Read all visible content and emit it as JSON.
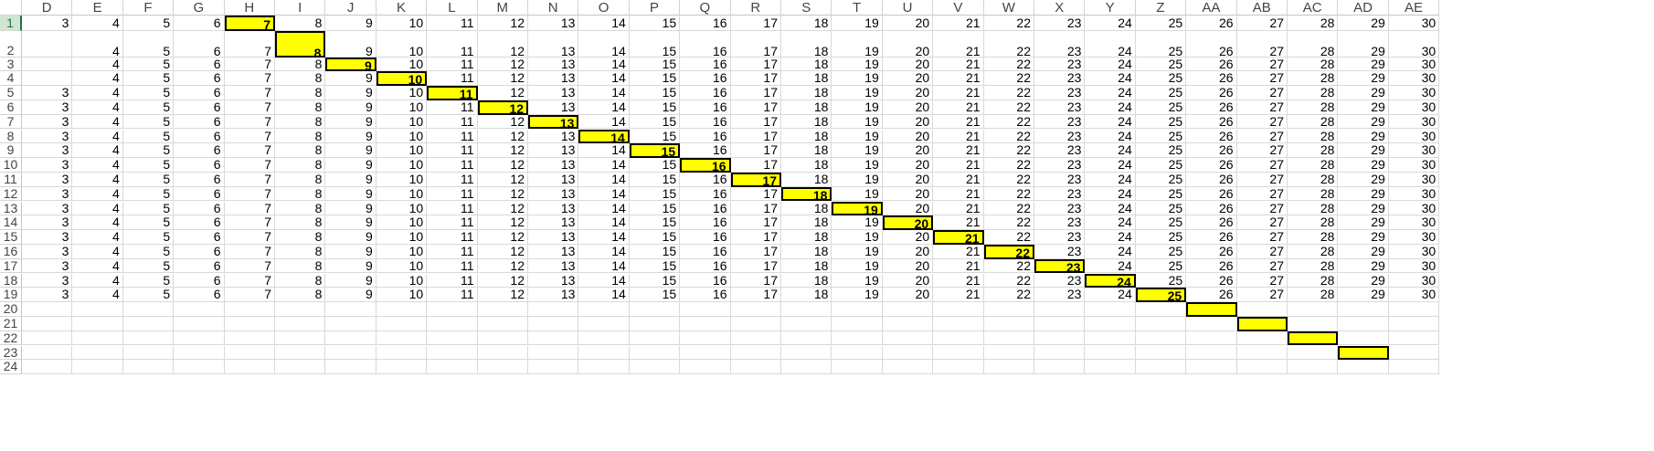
{
  "sheet": {
    "active_row": 1,
    "columns": [
      "D",
      "E",
      "F",
      "G",
      "H",
      "I",
      "J",
      "K",
      "L",
      "M",
      "N",
      "O",
      "P",
      "Q",
      "R",
      "S",
      "T",
      "U",
      "V",
      "W",
      "X",
      "Y",
      "Z",
      "AA",
      "AB",
      "AC",
      "AD",
      "AE"
    ],
    "row_numbers": [
      1,
      2,
      3,
      4,
      5,
      6,
      7,
      8,
      9,
      10,
      11,
      12,
      13,
      14,
      15,
      16,
      17,
      18,
      19,
      20,
      21,
      22,
      23,
      24
    ],
    "highlight_fill": "#ffff00",
    "highlight_border": "#000000",
    "rows": [
      {
        "cells": [
          "3",
          "4",
          "5",
          "6",
          "7",
          "8",
          "9",
          "10",
          "11",
          "12",
          "13",
          "14",
          "15",
          "16",
          "17",
          "18",
          "19",
          "20",
          "21",
          "22",
          "23",
          "24",
          "25",
          "26",
          "27",
          "28",
          "29",
          "30"
        ],
        "highlight": 4
      },
      {
        "cells": [
          "",
          "4",
          "5",
          "6",
          "7",
          "8",
          "9",
          "10",
          "11",
          "12",
          "13",
          "14",
          "15",
          "16",
          "17",
          "18",
          "19",
          "20",
          "21",
          "22",
          "23",
          "24",
          "25",
          "26",
          "27",
          "28",
          "29",
          "30"
        ],
        "highlight": 5
      },
      {
        "cells": [
          "",
          "4",
          "5",
          "6",
          "7",
          "8",
          "9",
          "10",
          "11",
          "12",
          "13",
          "14",
          "15",
          "16",
          "17",
          "18",
          "19",
          "20",
          "21",
          "22",
          "23",
          "24",
          "25",
          "26",
          "27",
          "28",
          "29",
          "30"
        ],
        "highlight": 6
      },
      {
        "cells": [
          "",
          "4",
          "5",
          "6",
          "7",
          "8",
          "9",
          "10",
          "11",
          "12",
          "13",
          "14",
          "15",
          "16",
          "17",
          "18",
          "19",
          "20",
          "21",
          "22",
          "23",
          "24",
          "25",
          "26",
          "27",
          "28",
          "29",
          "30"
        ],
        "highlight": 7
      },
      {
        "cells": [
          "3",
          "4",
          "5",
          "6",
          "7",
          "8",
          "9",
          "10",
          "11",
          "12",
          "13",
          "14",
          "15",
          "16",
          "17",
          "18",
          "19",
          "20",
          "21",
          "22",
          "23",
          "24",
          "25",
          "26",
          "27",
          "28",
          "29",
          "30"
        ],
        "highlight": 8
      },
      {
        "cells": [
          "3",
          "4",
          "5",
          "6",
          "7",
          "8",
          "9",
          "10",
          "11",
          "12",
          "13",
          "14",
          "15",
          "16",
          "17",
          "18",
          "19",
          "20",
          "21",
          "22",
          "23",
          "24",
          "25",
          "26",
          "27",
          "28",
          "29",
          "30"
        ],
        "highlight": 9
      },
      {
        "cells": [
          "3",
          "4",
          "5",
          "6",
          "7",
          "8",
          "9",
          "10",
          "11",
          "12",
          "13",
          "14",
          "15",
          "16",
          "17",
          "18",
          "19",
          "20",
          "21",
          "22",
          "23",
          "24",
          "25",
          "26",
          "27",
          "28",
          "29",
          "30"
        ],
        "highlight": 10
      },
      {
        "cells": [
          "3",
          "4",
          "5",
          "6",
          "7",
          "8",
          "9",
          "10",
          "11",
          "12",
          "13",
          "14",
          "15",
          "16",
          "17",
          "18",
          "19",
          "20",
          "21",
          "22",
          "23",
          "24",
          "25",
          "26",
          "27",
          "28",
          "29",
          "30"
        ],
        "highlight": 11
      },
      {
        "cells": [
          "3",
          "4",
          "5",
          "6",
          "7",
          "8",
          "9",
          "10",
          "11",
          "12",
          "13",
          "14",
          "15",
          "16",
          "17",
          "18",
          "19",
          "20",
          "21",
          "22",
          "23",
          "24",
          "25",
          "26",
          "27",
          "28",
          "29",
          "30"
        ],
        "highlight": 12
      },
      {
        "cells": [
          "3",
          "4",
          "5",
          "6",
          "7",
          "8",
          "9",
          "10",
          "11",
          "12",
          "13",
          "14",
          "15",
          "16",
          "17",
          "18",
          "19",
          "20",
          "21",
          "22",
          "23",
          "24",
          "25",
          "26",
          "27",
          "28",
          "29",
          "30"
        ],
        "highlight": 13
      },
      {
        "cells": [
          "3",
          "4",
          "5",
          "6",
          "7",
          "8",
          "9",
          "10",
          "11",
          "12",
          "13",
          "14",
          "15",
          "16",
          "17",
          "18",
          "19",
          "20",
          "21",
          "22",
          "23",
          "24",
          "25",
          "26",
          "27",
          "28",
          "29",
          "30"
        ],
        "highlight": 14
      },
      {
        "cells": [
          "3",
          "4",
          "5",
          "6",
          "7",
          "8",
          "9",
          "10",
          "11",
          "12",
          "13",
          "14",
          "15",
          "16",
          "17",
          "18",
          "19",
          "20",
          "21",
          "22",
          "23",
          "24",
          "25",
          "26",
          "27",
          "28",
          "29",
          "30"
        ],
        "highlight": 15
      },
      {
        "cells": [
          "3",
          "4",
          "5",
          "6",
          "7",
          "8",
          "9",
          "10",
          "11",
          "12",
          "13",
          "14",
          "15",
          "16",
          "17",
          "18",
          "19",
          "20",
          "21",
          "22",
          "23",
          "24",
          "25",
          "26",
          "27",
          "28",
          "29",
          "30"
        ],
        "highlight": 16
      },
      {
        "cells": [
          "3",
          "4",
          "5",
          "6",
          "7",
          "8",
          "9",
          "10",
          "11",
          "12",
          "13",
          "14",
          "15",
          "16",
          "17",
          "18",
          "19",
          "20",
          "21",
          "22",
          "23",
          "24",
          "25",
          "26",
          "27",
          "28",
          "29",
          "30"
        ],
        "highlight": 17
      },
      {
        "cells": [
          "3",
          "4",
          "5",
          "6",
          "7",
          "8",
          "9",
          "10",
          "11",
          "12",
          "13",
          "14",
          "15",
          "16",
          "17",
          "18",
          "19",
          "20",
          "21",
          "22",
          "23",
          "24",
          "25",
          "26",
          "27",
          "28",
          "29",
          "30"
        ],
        "highlight": 18
      },
      {
        "cells": [
          "3",
          "4",
          "5",
          "6",
          "7",
          "8",
          "9",
          "10",
          "11",
          "12",
          "13",
          "14",
          "15",
          "16",
          "17",
          "18",
          "19",
          "20",
          "21",
          "22",
          "23",
          "24",
          "25",
          "26",
          "27",
          "28",
          "29",
          "30"
        ],
        "highlight": 19
      },
      {
        "cells": [
          "3",
          "4",
          "5",
          "6",
          "7",
          "8",
          "9",
          "10",
          "11",
          "12",
          "13",
          "14",
          "15",
          "16",
          "17",
          "18",
          "19",
          "20",
          "21",
          "22",
          "23",
          "24",
          "25",
          "26",
          "27",
          "28",
          "29",
          "30"
        ],
        "highlight": 20
      },
      {
        "cells": [
          "3",
          "4",
          "5",
          "6",
          "7",
          "8",
          "9",
          "10",
          "11",
          "12",
          "13",
          "14",
          "15",
          "16",
          "17",
          "18",
          "19",
          "20",
          "21",
          "22",
          "23",
          "24",
          "25",
          "26",
          "27",
          "28",
          "29",
          "30"
        ],
        "highlight": 21
      },
      {
        "cells": [
          "3",
          "4",
          "5",
          "6",
          "7",
          "8",
          "9",
          "10",
          "11",
          "12",
          "13",
          "14",
          "15",
          "16",
          "17",
          "18",
          "19",
          "20",
          "21",
          "22",
          "23",
          "24",
          "25",
          "26",
          "27",
          "28",
          "29",
          "30"
        ],
        "highlight": 22
      },
      {
        "cells": [
          "",
          "",
          "",
          "",
          "",
          "",
          "",
          "",
          "",
          "",
          "",
          "",
          "",
          "",
          "",
          "",
          "",
          "",
          "",
          "",
          "",
          "",
          "",
          "",
          "",
          "",
          "",
          ""
        ],
        "highlight": 23
      },
      {
        "cells": [
          "",
          "",
          "",
          "",
          "",
          "",
          "",
          "",
          "",
          "",
          "",
          "",
          "",
          "",
          "",
          "",
          "",
          "",
          "",
          "",
          "",
          "",
          "",
          "",
          "",
          "",
          "",
          ""
        ],
        "highlight": 24
      },
      {
        "cells": [
          "",
          "",
          "",
          "",
          "",
          "",
          "",
          "",
          "",
          "",
          "",
          "",
          "",
          "",
          "",
          "",
          "",
          "",
          "",
          "",
          "",
          "",
          "",
          "",
          "",
          "",
          "",
          ""
        ],
        "highlight": 25
      },
      {
        "cells": [
          "",
          "",
          "",
          "",
          "",
          "",
          "",
          "",
          "",
          "",
          "",
          "",
          "",
          "",
          "",
          "",
          "",
          "",
          "",
          "",
          "",
          "",
          "",
          "",
          "",
          "",
          "",
          ""
        ],
        "highlight": 26
      },
      {
        "cells": [
          "",
          "",
          "",
          "",
          "",
          "",
          "",
          "",
          "",
          "",
          "",
          "",
          "",
          "",
          "",
          "",
          "",
          "",
          "",
          "",
          "",
          "",
          "",
          "",
          "",
          "",
          "",
          ""
        ],
        "highlight": -1
      }
    ]
  }
}
